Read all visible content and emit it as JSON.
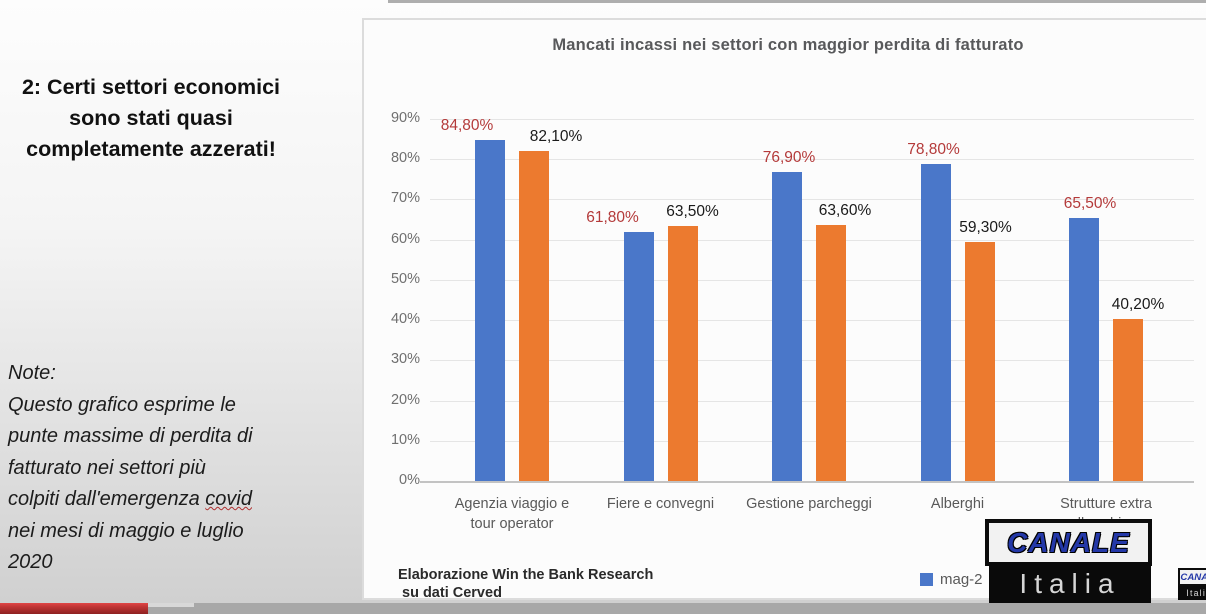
{
  "left_panel": {
    "headline": "2: Certi settori economici sono stati quasi completamente azzerati!",
    "note": {
      "label": "Note:",
      "lines": [
        "Questo grafico esprime le",
        "punte massime di perdita di",
        "fatturato nei settori più"
      ],
      "covid_prefix": "colpiti dall'emergenza ",
      "covid_word": "covid",
      "lines_after": [
        "nei mesi di maggio e luglio",
        "2020"
      ]
    }
  },
  "chart_data": {
    "type": "bar",
    "title": "Mancati incassi nei settori con maggior perdita di fatturato",
    "categories": [
      [
        "Agenzia viaggio e",
        "tour operator"
      ],
      [
        "Fiere e convegni"
      ],
      [
        "Gestione parcheggi"
      ],
      [
        "Alberghi"
      ],
      [
        "Strutture extra",
        "alberghiere"
      ]
    ],
    "series": [
      {
        "key": "blue",
        "name": "mag-2",
        "color": "#4a77c9",
        "label_color": "#b43a3a",
        "values": [
          84.8,
          61.8,
          76.9,
          78.8,
          65.5
        ],
        "labels": [
          "84,80%",
          "61,80%",
          "76,90%",
          "78,80%",
          "65,50%"
        ]
      },
      {
        "key": "orange",
        "name": "",
        "color": "#ec7a2f",
        "label_color": "#1a1a1a",
        "values": [
          82.1,
          63.5,
          63.6,
          59.3,
          40.2
        ],
        "labels": [
          "82,10%",
          "63,50%",
          "63,60%",
          "59,30%",
          "40,20%"
        ]
      }
    ],
    "yticks": [
      "90%",
      "80%",
      "70%",
      "60%",
      "50%",
      "40%",
      "30%",
      "20%",
      "10%",
      "0%"
    ],
    "ylim": [
      0,
      90
    ],
    "xlabel": "",
    "ylabel": "",
    "grid": true,
    "legend": {
      "visible_text": "mag-2",
      "position": "bottom-right"
    }
  },
  "chart_footer": {
    "line1": "Elaborazione Win the Bank Research",
    "line2": "su dati Cerved"
  },
  "logo": {
    "line1": "CANALE",
    "line2": "Italia"
  }
}
